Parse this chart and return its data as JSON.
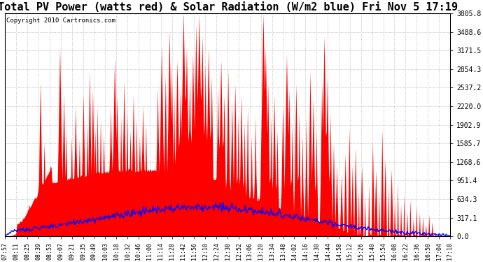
{
  "title": "Total PV Power (watts red) & Solar Radiation (W/m2 blue) Fri Nov 5 17:19",
  "copyright_text": "Copyright 2010 Cartronics.com",
  "ymin": 0.0,
  "ymax": 3805.8,
  "yticks": [
    0.0,
    317.1,
    634.3,
    951.4,
    1268.6,
    1585.7,
    1902.9,
    2220.0,
    2537.2,
    2854.3,
    3171.5,
    3488.6,
    3805.8
  ],
  "background_color": "#ffffff",
  "plot_bg_color": "#ffffff",
  "grid_color": "#999999",
  "pv_color": "#ff0000",
  "solar_color": "#0000ff",
  "title_fontsize": 11,
  "copyright_fontsize": 6.5,
  "tick_fontsize": 7,
  "xtick_fontsize": 6,
  "figsize": [
    6.9,
    3.75
  ],
  "dpi": 100,
  "xtick_labels": [
    "07:57",
    "08:11",
    "08:25",
    "08:39",
    "08:53",
    "09:07",
    "09:21",
    "09:35",
    "09:49",
    "10:03",
    "10:18",
    "10:32",
    "10:46",
    "11:00",
    "11:14",
    "11:28",
    "11:42",
    "11:56",
    "12:10",
    "12:24",
    "12:38",
    "12:52",
    "13:06",
    "13:20",
    "13:34",
    "13:48",
    "14:02",
    "14:16",
    "14:30",
    "14:44",
    "14:58",
    "15:12",
    "15:26",
    "15:40",
    "15:54",
    "16:08",
    "16:22",
    "16:36",
    "16:50",
    "17:04",
    "17:18"
  ]
}
